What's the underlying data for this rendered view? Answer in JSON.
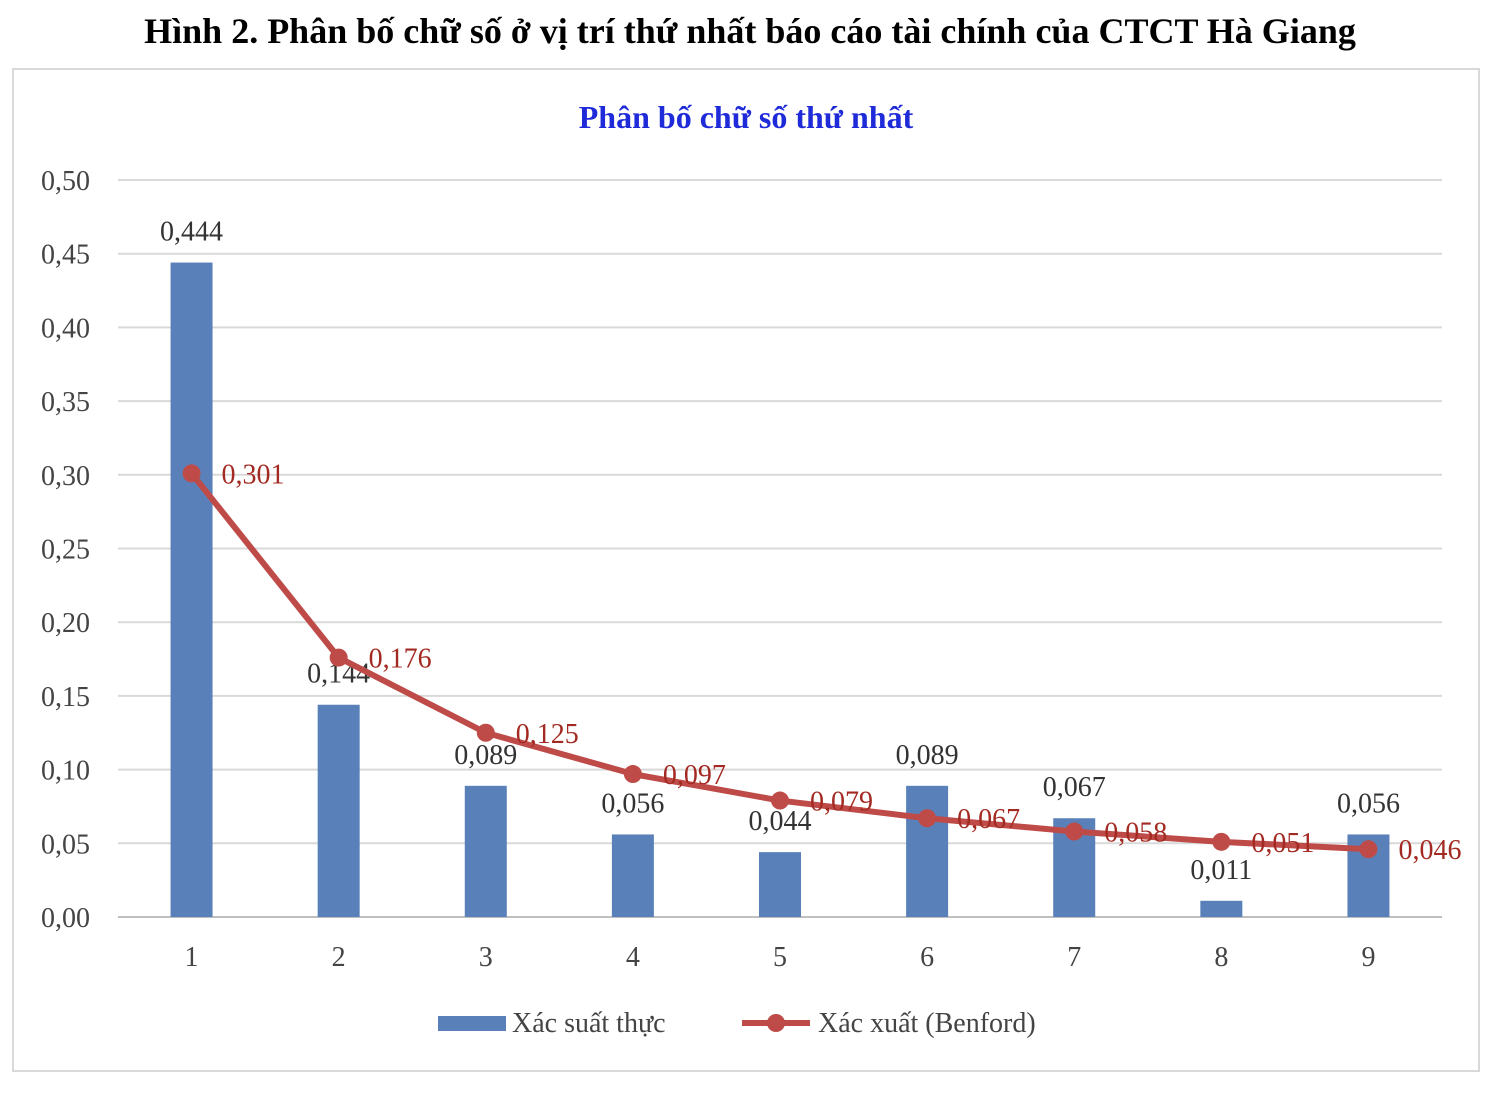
{
  "figure": {
    "caption": "Hình 2. Phân bố chữ số ở vị trí thứ nhất báo cáo tài chính của CTCT Hà Giang"
  },
  "chart_data": {
    "type": "bar",
    "title": "Phân bố chữ số thứ nhất",
    "categories": [
      "1",
      "2",
      "3",
      "4",
      "5",
      "6",
      "7",
      "8",
      "9"
    ],
    "ylim": [
      0,
      0.5
    ],
    "yticks": [
      "0,00",
      "0,05",
      "0,10",
      "0,15",
      "0,20",
      "0,25",
      "0,30",
      "0,35",
      "0,40",
      "0,45",
      "0,50"
    ],
    "grid": true,
    "legend_position": "bottom",
    "series": [
      {
        "name": "Xác suất thực",
        "type": "bar",
        "color": "#5a80b9",
        "values": [
          0.444,
          0.144,
          0.089,
          0.056,
          0.044,
          0.089,
          0.067,
          0.011,
          0.056
        ],
        "labels": [
          "0,444",
          "0,144",
          "0,089",
          "0,056",
          "0,044",
          "0,089",
          "0,067",
          "0,011",
          "0,056"
        ]
      },
      {
        "name": "Xác xuất (Benford)",
        "type": "line",
        "color": "#be4b48",
        "label_color": "#a32a22",
        "values": [
          0.301,
          0.176,
          0.125,
          0.097,
          0.079,
          0.067,
          0.058,
          0.051,
          0.046
        ],
        "labels": [
          "0,301",
          "0,176",
          "0,125",
          "0,097",
          "0,079",
          "0,067",
          "0,058",
          "0,051",
          "0,046"
        ]
      }
    ]
  }
}
